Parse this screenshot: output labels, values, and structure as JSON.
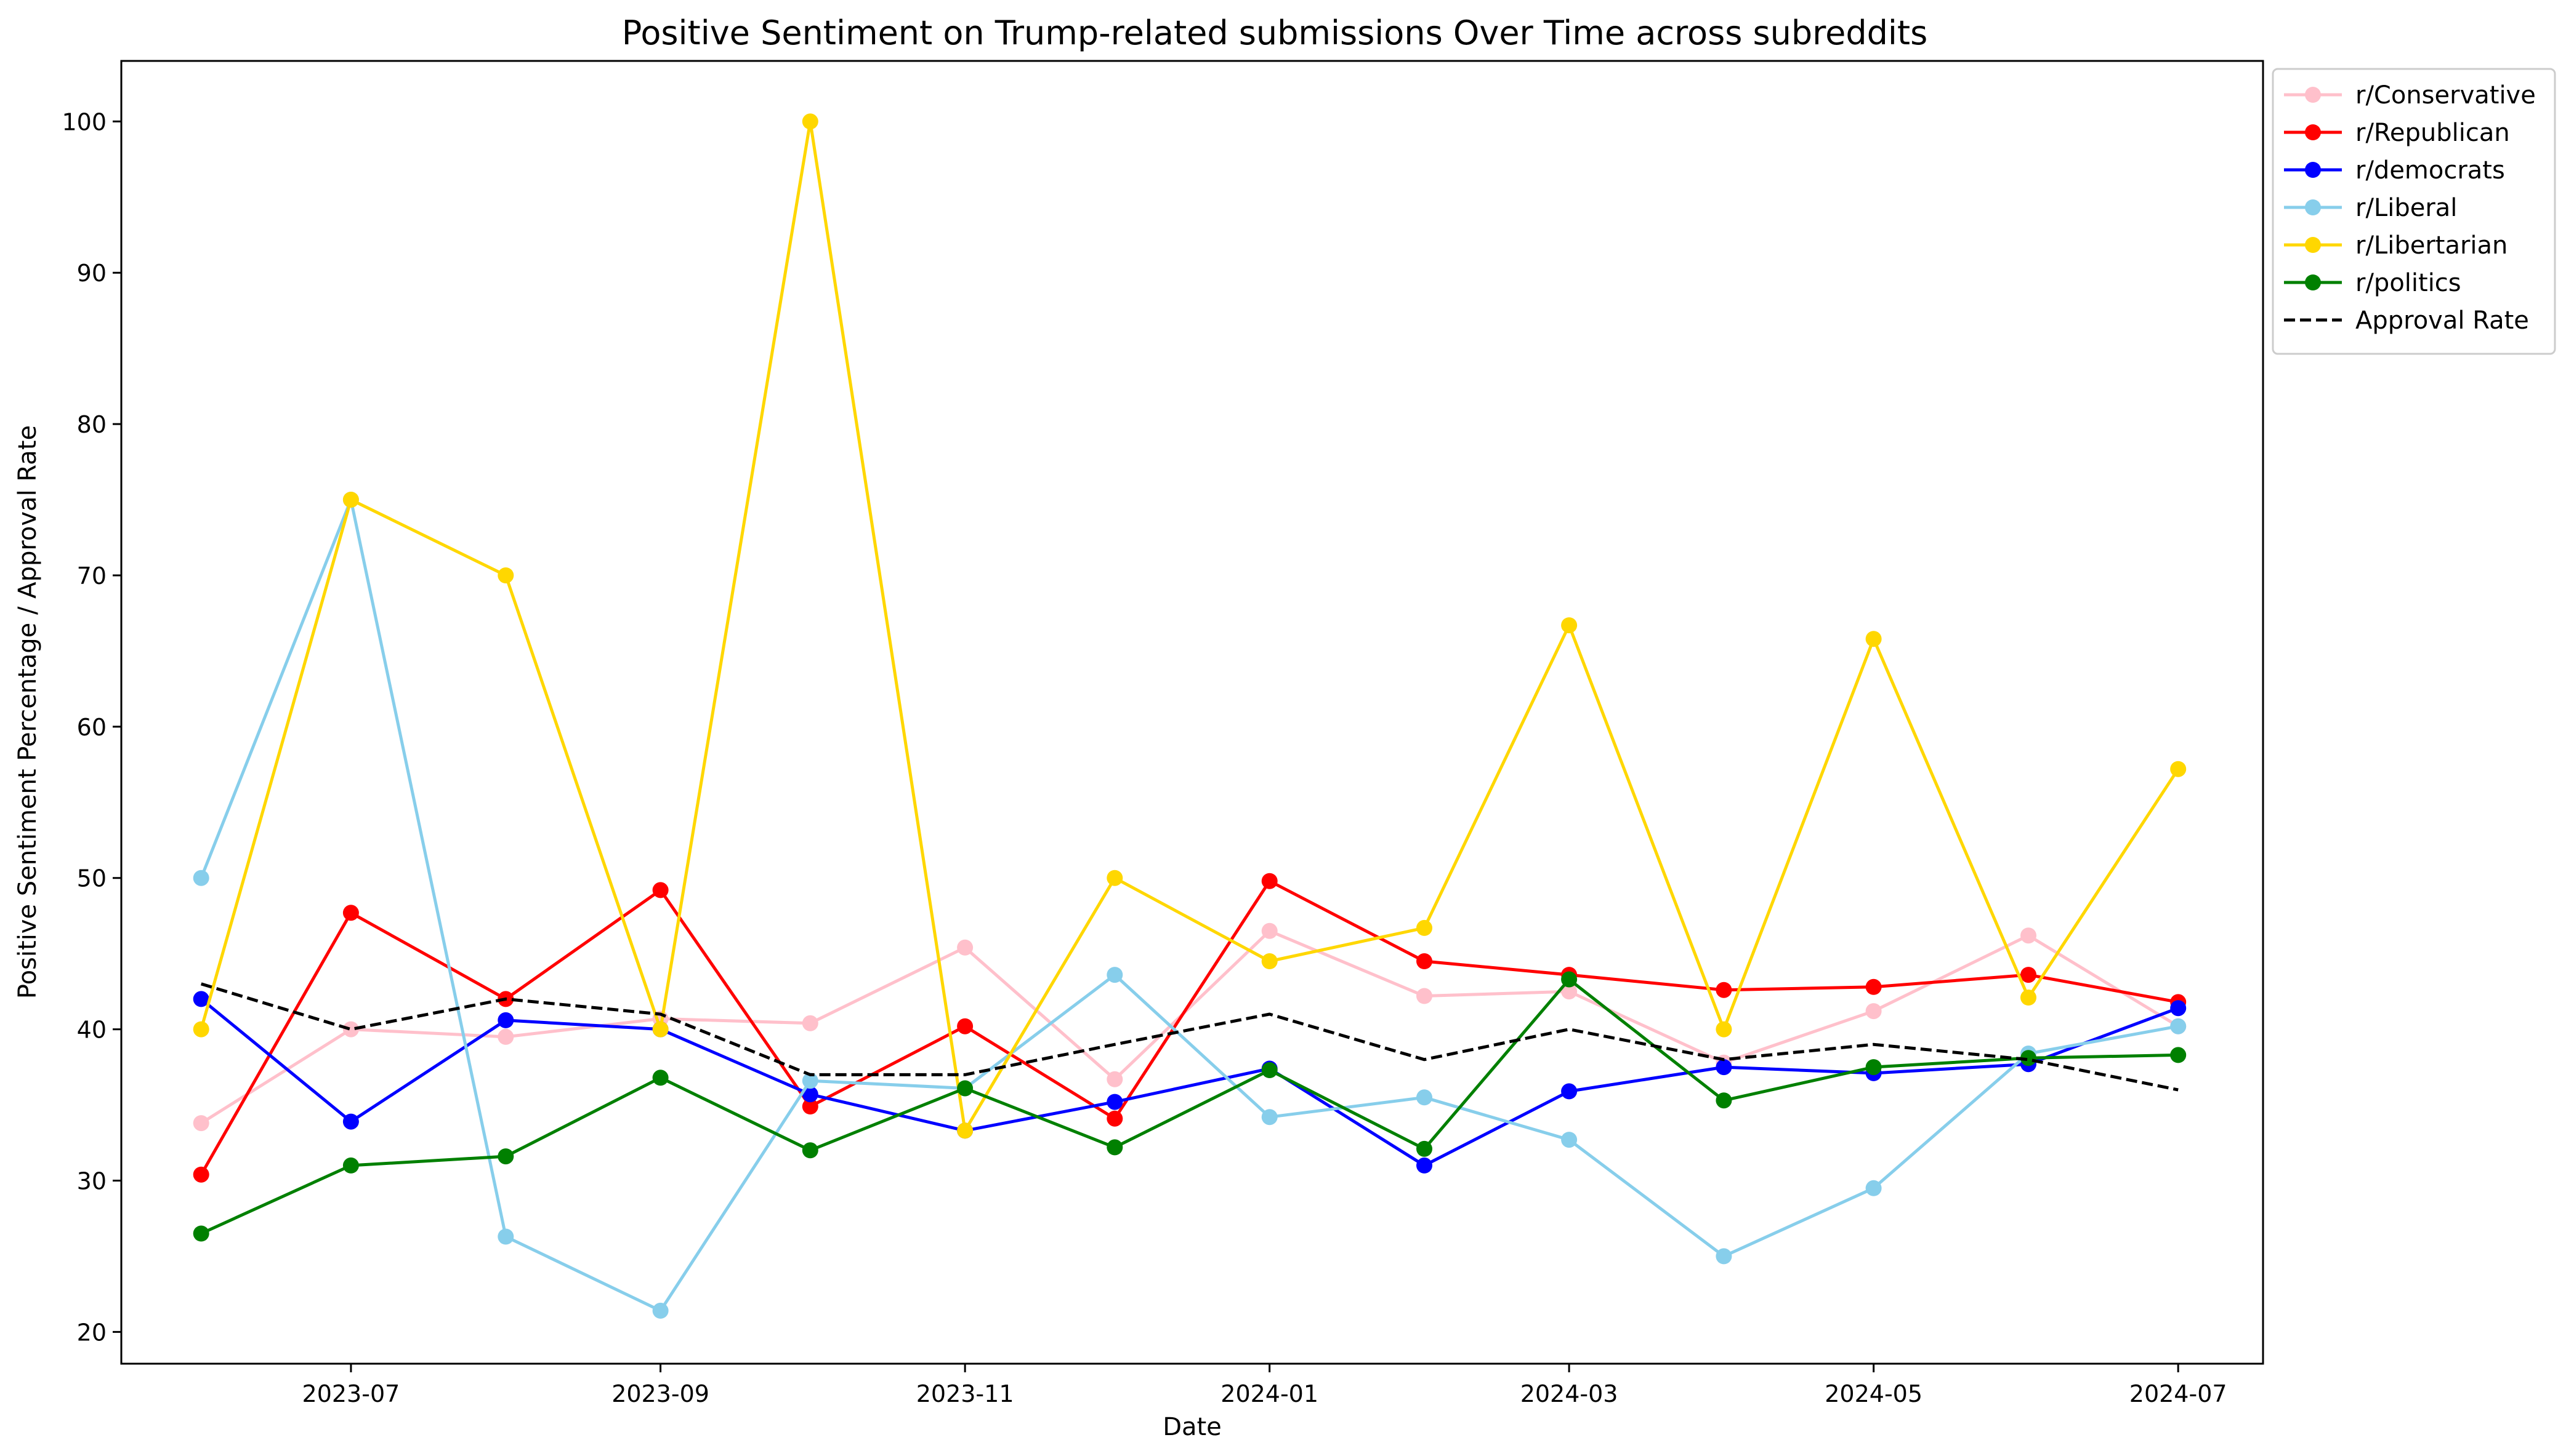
{
  "chart_data": {
    "type": "line",
    "title": "Positive Sentiment on Trump-related submissions Over Time across subreddits",
    "xlabel": "Date",
    "ylabel": "Positive Sentiment Percentage / Approval Rate",
    "x": [
      "2023-06",
      "2023-07",
      "2023-08",
      "2023-09",
      "2023-10",
      "2023-11",
      "2023-12",
      "2024-01",
      "2024-02",
      "2024-03",
      "2024-04",
      "2024-05",
      "2024-06",
      "2024-07"
    ],
    "x_ticks": [
      "2023-07",
      "2023-09",
      "2023-11",
      "2024-01",
      "2024-03",
      "2024-05",
      "2024-07"
    ],
    "xlim": [
      "2023-05-16",
      "2024-07-18"
    ],
    "ylim": [
      17.9,
      104.0
    ],
    "y_ticks": [
      20,
      30,
      40,
      50,
      60,
      70,
      80,
      90,
      100
    ],
    "grid": false,
    "legend_position": "outside-top-right",
    "series": [
      {
        "name": "r/Conservative",
        "color": "#FFC0CB",
        "style": "solid",
        "marker": "circle",
        "values": [
          33.8,
          40.0,
          39.5,
          40.7,
          40.4,
          45.4,
          36.7,
          46.5,
          42.2,
          42.5,
          37.8,
          41.2,
          46.2,
          40.2
        ]
      },
      {
        "name": "r/Republican",
        "color": "#FF0000",
        "style": "solid",
        "marker": "circle",
        "values": [
          30.4,
          47.7,
          42.0,
          49.2,
          34.9,
          40.2,
          34.1,
          49.8,
          44.5,
          43.6,
          42.6,
          42.8,
          43.6,
          41.8
        ]
      },
      {
        "name": "r/democrats",
        "color": "#0000FF",
        "style": "solid",
        "marker": "circle",
        "values": [
          42.0,
          33.9,
          40.6,
          40.0,
          35.7,
          33.3,
          35.2,
          37.4,
          31.0,
          35.9,
          37.5,
          37.1,
          37.7,
          41.4
        ]
      },
      {
        "name": "r/Liberal",
        "color": "#87CEEB",
        "style": "solid",
        "marker": "circle",
        "values": [
          50.0,
          75.0,
          26.3,
          21.4,
          36.6,
          36.1,
          43.6,
          34.2,
          35.5,
          32.7,
          25.0,
          29.5,
          38.4,
          40.2
        ]
      },
      {
        "name": "r/Libertarian",
        "color": "#FFD700",
        "style": "solid",
        "marker": "circle",
        "values": [
          40.0,
          75.0,
          70.0,
          40.0,
          100.0,
          33.3,
          50.0,
          44.5,
          46.7,
          66.7,
          40.0,
          65.8,
          42.1,
          57.2
        ]
      },
      {
        "name": "r/politics",
        "color": "#008000",
        "style": "solid",
        "marker": "circle",
        "values": [
          26.5,
          31.0,
          31.6,
          36.8,
          32.0,
          36.1,
          32.2,
          37.3,
          32.1,
          43.3,
          35.3,
          37.5,
          38.1,
          38.3
        ]
      },
      {
        "name": "Approval Rate",
        "color": "#000000",
        "style": "dashed",
        "marker": "none",
        "values": [
          43,
          40,
          42,
          41,
          37,
          37,
          39,
          41,
          38,
          40,
          38,
          39,
          38,
          36
        ]
      }
    ]
  }
}
